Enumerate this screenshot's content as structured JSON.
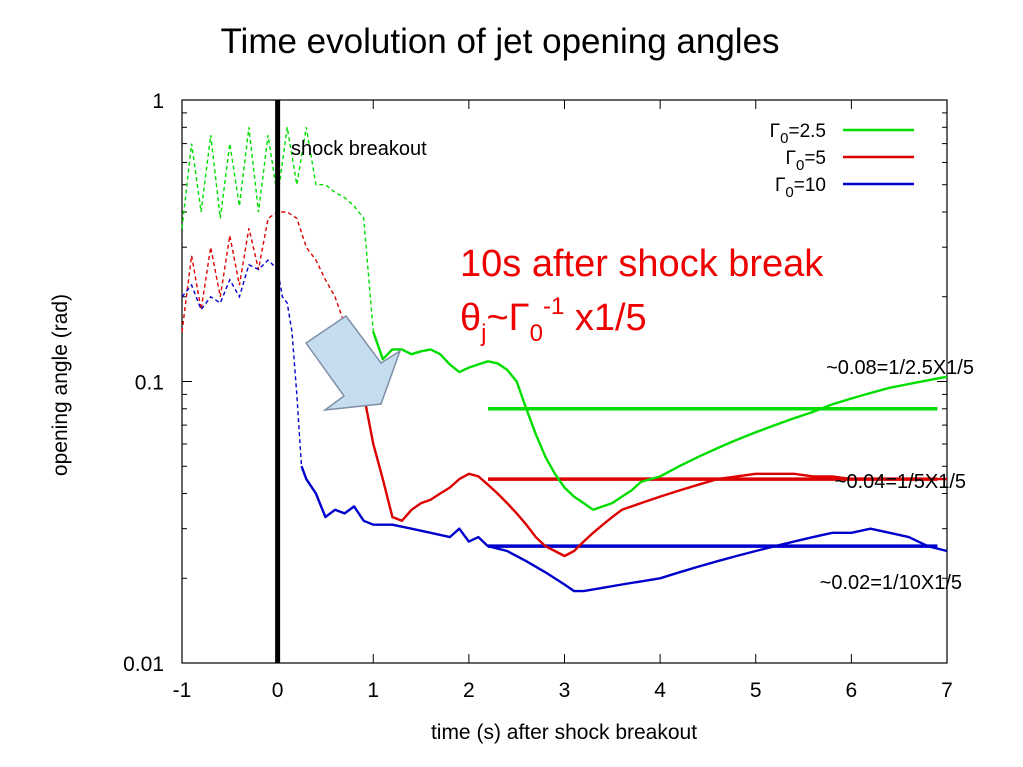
{
  "slide_title": "Time evolution of jet opening angles",
  "chart_data": {
    "type": "line",
    "title": "",
    "xlabel": "time (s) after shock breakout",
    "ylabel": "opening angle (rad)",
    "xlim": [
      -1,
      7
    ],
    "ylim": [
      0.01,
      1
    ],
    "yscale": "log",
    "x_ticks": [
      "-1",
      "0",
      "1",
      "2",
      "3",
      "4",
      "5",
      "6",
      "7"
    ],
    "y_ticks": [
      {
        "value": 1,
        "label": "1"
      },
      {
        "value": 0.1,
        "label": "0.1"
      },
      {
        "value": 0.01,
        "label": "0.01"
      }
    ],
    "legend": {
      "position": "top-right",
      "entries": [
        {
          "base": "Γ",
          "sub": "0",
          "rest": "=2.5",
          "color": "#00dd00"
        },
        {
          "base": "Γ",
          "sub": "0",
          "rest": "=5",
          "color": "#dd0000"
        },
        {
          "base": "Γ",
          "sub": "0",
          "rest": "=10",
          "color": "#0000cc"
        }
      ]
    },
    "series": [
      {
        "color": "#00dd00",
        "dashed_until": 1.0,
        "x": [
          -1.0,
          -0.9,
          -0.8,
          -0.7,
          -0.6,
          -0.5,
          -0.4,
          -0.3,
          -0.2,
          -0.1,
          0.0,
          0.1,
          0.2,
          0.3,
          0.4,
          0.5,
          0.6,
          0.7,
          0.8,
          0.9,
          1.0,
          1.1,
          1.2,
          1.3,
          1.4,
          1.5,
          1.6,
          1.7,
          1.8,
          1.9,
          2.0,
          2.1,
          2.2,
          2.3,
          2.4,
          2.5,
          2.6,
          2.7,
          2.8,
          2.9,
          3.0,
          3.1,
          3.2,
          3.3,
          3.4,
          3.5,
          3.6,
          3.7,
          3.8,
          3.9,
          4.0,
          4.2,
          4.4,
          4.6,
          4.8,
          5.0,
          5.2,
          5.4,
          5.6,
          5.8,
          6.0,
          6.2,
          6.4,
          6.6,
          6.8,
          7.0
        ],
        "y": [
          0.35,
          0.7,
          0.4,
          0.75,
          0.38,
          0.7,
          0.42,
          0.8,
          0.4,
          0.75,
          0.45,
          0.8,
          0.5,
          0.8,
          0.5,
          0.5,
          0.47,
          0.45,
          0.42,
          0.38,
          0.15,
          0.12,
          0.13,
          0.13,
          0.125,
          0.128,
          0.13,
          0.125,
          0.115,
          0.108,
          0.112,
          0.115,
          0.118,
          0.116,
          0.11,
          0.1,
          0.08,
          0.065,
          0.054,
          0.047,
          0.042,
          0.039,
          0.037,
          0.035,
          0.036,
          0.037,
          0.039,
          0.041,
          0.044,
          0.045,
          0.046,
          0.05,
          0.054,
          0.058,
          0.062,
          0.066,
          0.07,
          0.074,
          0.078,
          0.083,
          0.087,
          0.091,
          0.095,
          0.098,
          0.101,
          0.104
        ]
      },
      {
        "color": "#dd0000",
        "dashed_until": 0.85,
        "x": [
          -1.0,
          -0.9,
          -0.8,
          -0.7,
          -0.6,
          -0.5,
          -0.4,
          -0.3,
          -0.2,
          -0.1,
          0.0,
          0.1,
          0.2,
          0.3,
          0.4,
          0.5,
          0.6,
          0.7,
          0.8,
          0.85,
          0.9,
          1.0,
          1.1,
          1.2,
          1.3,
          1.4,
          1.5,
          1.6,
          1.7,
          1.8,
          1.9,
          2.0,
          2.1,
          2.2,
          2.3,
          2.4,
          2.5,
          2.6,
          2.7,
          2.8,
          2.9,
          3.0,
          3.1,
          3.2,
          3.3,
          3.4,
          3.5,
          3.6,
          3.8,
          4.0,
          4.2,
          4.4,
          4.6,
          4.8,
          5.0,
          5.2,
          5.4,
          5.6,
          5.8,
          6.0,
          6.2,
          6.4,
          6.6,
          6.8,
          7.0
        ],
        "y": [
          0.15,
          0.28,
          0.18,
          0.3,
          0.2,
          0.33,
          0.22,
          0.35,
          0.25,
          0.38,
          0.4,
          0.4,
          0.38,
          0.3,
          0.27,
          0.23,
          0.2,
          0.16,
          0.13,
          0.11,
          0.09,
          0.06,
          0.045,
          0.033,
          0.032,
          0.035,
          0.037,
          0.038,
          0.04,
          0.042,
          0.045,
          0.047,
          0.046,
          0.043,
          0.04,
          0.037,
          0.034,
          0.031,
          0.028,
          0.026,
          0.025,
          0.024,
          0.025,
          0.027,
          0.029,
          0.031,
          0.033,
          0.035,
          0.037,
          0.039,
          0.041,
          0.043,
          0.045,
          0.046,
          0.047,
          0.047,
          0.047,
          0.046,
          0.046,
          0.045,
          0.045,
          0.045,
          0.045,
          0.045,
          0.045
        ]
      },
      {
        "color": "#0000cc",
        "dashed_until": 0.25,
        "x": [
          -1.0,
          -0.9,
          -0.8,
          -0.7,
          -0.6,
          -0.5,
          -0.4,
          -0.3,
          -0.2,
          -0.1,
          0.0,
          0.05,
          0.1,
          0.15,
          0.2,
          0.25,
          0.3,
          0.4,
          0.5,
          0.6,
          0.7,
          0.8,
          0.9,
          1.0,
          1.2,
          1.4,
          1.6,
          1.8,
          1.9,
          2.0,
          2.1,
          2.2,
          2.4,
          2.6,
          2.8,
          3.0,
          3.1,
          3.2,
          3.4,
          3.6,
          3.8,
          4.0,
          4.2,
          4.4,
          4.6,
          4.8,
          5.0,
          5.2,
          5.4,
          5.6,
          5.8,
          6.0,
          6.2,
          6.4,
          6.6,
          6.8,
          7.0
        ],
        "y": [
          0.2,
          0.22,
          0.18,
          0.2,
          0.19,
          0.23,
          0.2,
          0.26,
          0.25,
          0.27,
          0.25,
          0.2,
          0.19,
          0.15,
          0.09,
          0.05,
          0.045,
          0.04,
          0.033,
          0.035,
          0.034,
          0.036,
          0.032,
          0.031,
          0.031,
          0.03,
          0.029,
          0.028,
          0.03,
          0.027,
          0.028,
          0.026,
          0.025,
          0.023,
          0.021,
          0.019,
          0.018,
          0.018,
          0.0185,
          0.019,
          0.0195,
          0.02,
          0.021,
          0.022,
          0.023,
          0.024,
          0.025,
          0.026,
          0.027,
          0.028,
          0.029,
          0.029,
          0.03,
          0.029,
          0.028,
          0.026,
          0.025
        ]
      }
    ],
    "reference_lines": [
      {
        "y": 0.08,
        "x_start": 2.2,
        "x_end": 6.9,
        "color": "#00dd00",
        "label": "~0.08=1/2.5X1/5"
      },
      {
        "y": 0.045,
        "x_start": 2.2,
        "x_end": 6.9,
        "color": "#dd0000",
        "label": "~0.04=1/5X1/5"
      },
      {
        "y": 0.026,
        "x_start": 2.2,
        "x_end": 6.9,
        "color": "#0000cc",
        "label": "~0.02=1/10X1/5"
      }
    ],
    "annotations": {
      "vertical_marker": {
        "x": 0,
        "label": "shock breakout"
      },
      "note_line1": "10s after shock break",
      "note_line2": {
        "theta": "θ",
        "theta_sub": "j",
        "tilde_gamma": "~Γ",
        "gamma_sub": "0",
        "exponent": "-1",
        "tail": " x1/5"
      }
    }
  }
}
